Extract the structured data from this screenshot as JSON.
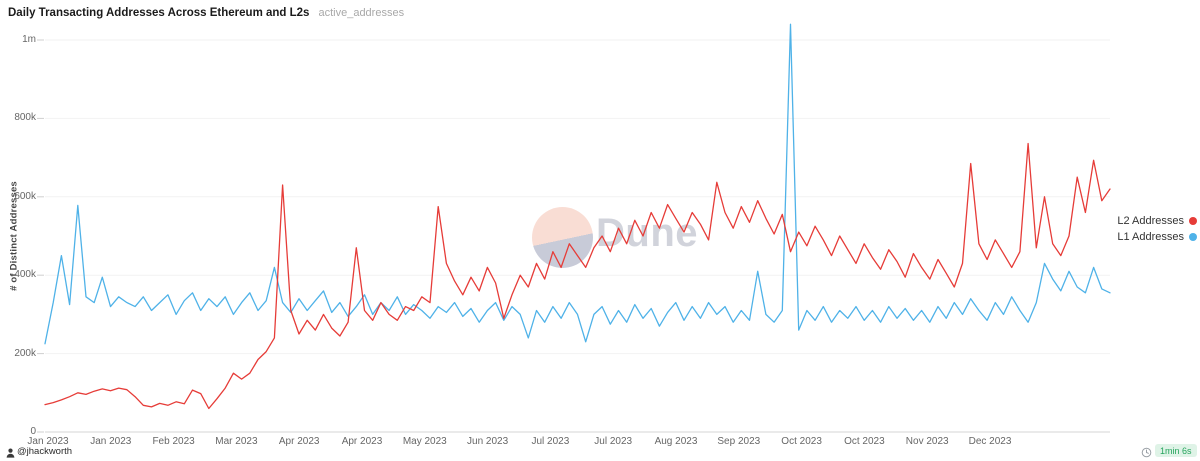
{
  "header": {
    "title": "Daily Transacting Addresses Across Ethereum and L2s",
    "subtitle": "active_addresses"
  },
  "watermark": {
    "text": "Dune"
  },
  "legend": [
    {
      "label": "L2 Addresses",
      "color": "#e63c38"
    },
    {
      "label": "L1 Addresses",
      "color": "#4fb2e8"
    }
  ],
  "footer": {
    "author": "@jhackworth",
    "runtime": "1min 6s",
    "runtime_badge_bg": "#dff3e7",
    "runtime_badge_color": "#26a45d"
  },
  "chart_data": {
    "type": "line",
    "title": "Daily Transacting Addresses Across Ethereum and L2s",
    "subtitle": "active_addresses",
    "ylabel": "# of Distinct Addresses",
    "xlabel": "",
    "grid": true,
    "legend_position": "right",
    "values_unit": "thousands of distinct addresses",
    "ylim": [
      0,
      1000
    ],
    "ytick_values": [
      0,
      200,
      400,
      600,
      800,
      1000
    ],
    "ytick_labels": [
      "0",
      "200k",
      "400k",
      "600k",
      "800k",
      "1m"
    ],
    "xtick_labels": [
      "Jan 2023",
      "Jan 2023",
      "Feb 2023",
      "Mar 2023",
      "Apr 2023",
      "Apr 2023",
      "May 2023",
      "Jun 2023",
      "Jul 2023",
      "Jul 2023",
      "Aug 2023",
      "Sep 2023",
      "Oct 2023",
      "Oct 2023",
      "Nov 2023",
      "Dec 2023"
    ],
    "x_range_note": "daily data, Jan 2023 through Dec 2023, sampled every ~3 days",
    "annotations": [
      "L2 spike ~630k on ~Mar 23 2023",
      "L1 spike ~1.04m in early Sep 2023",
      "L2 peaks ~736k and ~693k in Dec 2023"
    ],
    "series": [
      {
        "name": "L2 Addresses",
        "color": "#e63c38",
        "values": [
          70,
          75,
          82,
          90,
          100,
          96,
          104,
          110,
          105,
          112,
          108,
          90,
          68,
          64,
          73,
          68,
          77,
          72,
          107,
          98,
          60,
          85,
          112,
          150,
          135,
          150,
          185,
          205,
          240,
          630,
          310,
          250,
          285,
          260,
          300,
          265,
          245,
          280,
          470,
          310,
          285,
          330,
          300,
          285,
          320,
          310,
          345,
          330,
          575,
          430,
          385,
          350,
          395,
          360,
          420,
          380,
          290,
          350,
          400,
          370,
          430,
          390,
          460,
          420,
          480,
          450,
          420,
          470,
          500,
          460,
          520,
          480,
          540,
          500,
          560,
          520,
          580,
          545,
          510,
          560,
          530,
          490,
          637,
          560,
          520,
          575,
          535,
          590,
          545,
          505,
          555,
          460,
          510,
          475,
          525,
          490,
          450,
          500,
          465,
          430,
          480,
          445,
          415,
          465,
          435,
          395,
          455,
          420,
          390,
          440,
          405,
          370,
          430,
          685,
          480,
          440,
          490,
          455,
          420,
          460,
          736,
          470,
          600,
          480,
          450,
          500,
          650,
          560,
          693,
          590,
          620
        ]
      },
      {
        "name": "L1 Addresses",
        "color": "#4fb2e8",
        "values": [
          225,
          330,
          450,
          325,
          578,
          345,
          330,
          395,
          320,
          345,
          330,
          320,
          345,
          310,
          330,
          350,
          300,
          335,
          355,
          310,
          340,
          320,
          345,
          300,
          330,
          355,
          310,
          335,
          420,
          330,
          305,
          340,
          310,
          335,
          360,
          305,
          330,
          295,
          320,
          350,
          300,
          330,
          310,
          345,
          300,
          325,
          310,
          290,
          320,
          305,
          330,
          295,
          315,
          280,
          310,
          330,
          285,
          320,
          300,
          240,
          310,
          280,
          320,
          290,
          330,
          300,
          230,
          300,
          320,
          275,
          310,
          280,
          325,
          290,
          315,
          270,
          305,
          330,
          285,
          320,
          290,
          330,
          300,
          320,
          280,
          310,
          285,
          410,
          300,
          280,
          310,
          1040,
          260,
          310,
          285,
          320,
          280,
          310,
          290,
          320,
          285,
          310,
          280,
          320,
          290,
          315,
          285,
          310,
          280,
          320,
          290,
          330,
          300,
          340,
          310,
          285,
          330,
          300,
          345,
          310,
          280,
          330,
          430,
          390,
          360,
          410,
          370,
          355,
          420,
          365,
          355
        ]
      }
    ]
  }
}
